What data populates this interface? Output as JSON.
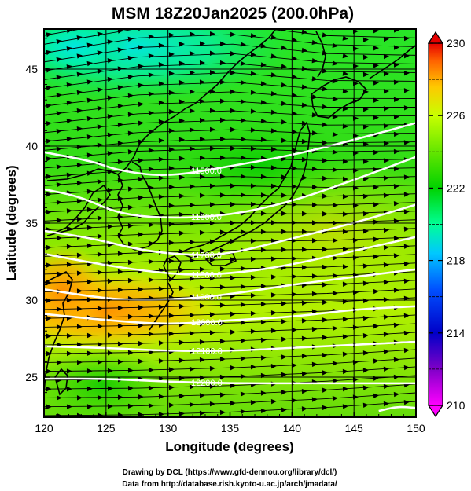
{
  "chart_data": {
    "type": "heatmap",
    "title": "MSM 18Z20Jan2025 (200.0hPa)",
    "xlabel": "Longitude (degrees)",
    "ylabel": "Latitude  (degrees)",
    "xlim": [
      120,
      150
    ],
    "ylim": [
      22.4,
      47.6
    ],
    "xticks": [
      "120",
      "125",
      "130",
      "135",
      "140",
      "145",
      "150"
    ],
    "yticks": [
      "25",
      "30",
      "35",
      "40",
      "45"
    ],
    "colorbar": {
      "min": 210,
      "max": 230,
      "ticks": [
        "210",
        "214",
        "218",
        "222",
        "226",
        "230"
      ],
      "colors": [
        "#ff00ff",
        "#0000c8",
        "#0050ff",
        "#00c8ff",
        "#00ff96",
        "#00d200",
        "#64e600",
        "#c8ff00",
        "#ffc800",
        "#ff6400",
        "#e60000"
      ]
    },
    "field": "temperature (K), shaded",
    "contours": {
      "color": "#ffffff",
      "lines": [
        {
          "label": "11500.0",
          "points": [
            [
              120,
              39.6
            ],
            [
              124,
              39.0
            ],
            [
              126,
              38.4
            ],
            [
              130,
              38.0
            ],
            [
              135,
              38.7
            ],
            [
              140,
              39.4
            ],
            [
              145,
              40.4
            ],
            [
              150,
              41.5
            ]
          ]
        },
        {
          "label": "11600.0",
          "points": [
            [
              120,
              37.2
            ],
            [
              123,
              36.7
            ],
            [
              126,
              35.6
            ],
            [
              130,
              35.3
            ],
            [
              135,
              35.5
            ],
            [
              140,
              36.4
            ],
            [
              145,
              37.8
            ],
            [
              150,
              39.3
            ]
          ]
        },
        {
          "label": "11700.0",
          "points": [
            [
              120,
              34.5
            ],
            [
              124,
              34.0
            ],
            [
              128,
              33.2
            ],
            [
              132,
              32.9
            ],
            [
              135,
              33.0
            ],
            [
              140,
              34.0
            ],
            [
              145,
              35.0
            ],
            [
              150,
              36.2
            ]
          ]
        },
        {
          "label": "11800.0",
          "points": [
            [
              120,
              33.0
            ],
            [
              124,
              32.4
            ],
            [
              128,
              31.9
            ],
            [
              132,
              31.6
            ],
            [
              136,
              31.8
            ],
            [
              140,
              32.3
            ],
            [
              145,
              33.2
            ],
            [
              150,
              34.1
            ]
          ]
        },
        {
          "label": "11900.0",
          "points": [
            [
              120,
              30.7
            ],
            [
              125,
              30.1
            ],
            [
              128,
              30.0
            ],
            [
              132,
              30.1
            ],
            [
              136,
              30.5
            ],
            [
              140,
              31.0
            ],
            [
              145,
              31.5
            ],
            [
              150,
              32.0
            ]
          ]
        },
        {
          "label": "12000.0",
          "points": [
            [
              120,
              29.1
            ],
            [
              125,
              28.7
            ],
            [
              130,
              28.4
            ],
            [
              135,
              28.7
            ],
            [
              140,
              28.9
            ],
            [
              145,
              29.4
            ],
            [
              150,
              29.6
            ]
          ]
        },
        {
          "label": "12100.0",
          "points": [
            [
              120,
              27.0
            ],
            [
              125,
              26.9
            ],
            [
              130,
              26.7
            ],
            [
              135,
              26.7
            ],
            [
              140,
              26.9
            ],
            [
              145,
              27.1
            ],
            [
              150,
              27.3
            ]
          ]
        },
        {
          "label": "12200.0",
          "points": [
            [
              120,
              24.9
            ],
            [
              125,
              24.9
            ],
            [
              130,
              24.7
            ],
            [
              135,
              24.6
            ],
            [
              140,
              24.6
            ],
            [
              145,
              24.6
            ],
            [
              150,
              24.6
            ]
          ]
        },
        {
          "label": "",
          "points": [
            [
              147,
              22.8
            ],
            [
              148.5,
              23.1
            ],
            [
              150,
              23.0
            ]
          ]
        }
      ]
    },
    "wind_vectors": "streamline arrows from west to east"
  },
  "credits": {
    "line1": "Drawing by DCL (https://www.gfd-dennou.org/library/dcl/)",
    "line2": "Data from http://database.rish.kyoto-u.ac.jp/arch/jmadata/"
  }
}
